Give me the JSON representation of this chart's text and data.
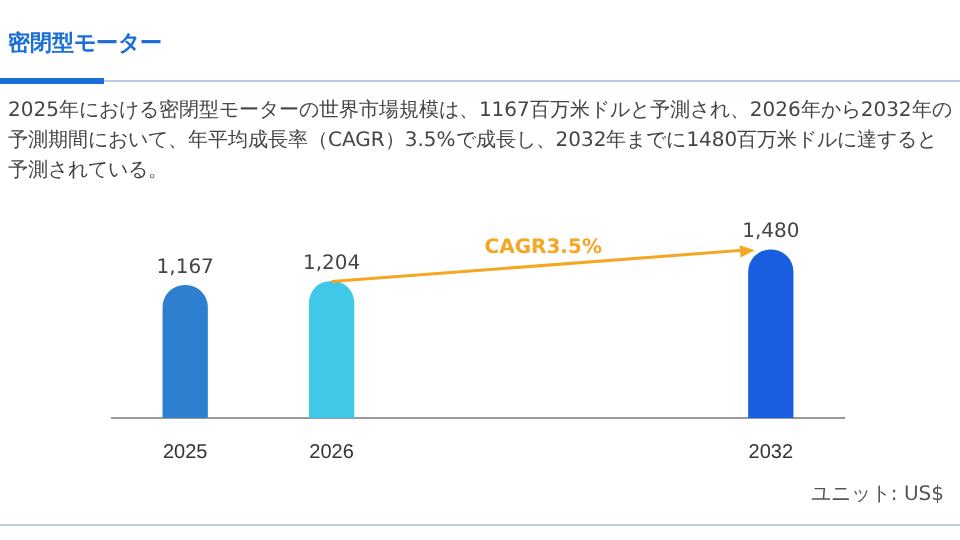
{
  "chart_data": {
    "type": "bar",
    "title": "密閉型モーター",
    "categories": [
      "2025",
      "2026",
      null,
      null,
      "2032"
    ],
    "values": [
      1167,
      1204,
      null,
      null,
      1480
    ],
    "colors": [
      "#2e7fd0",
      "#40c8e8",
      null,
      null,
      "#1a5ee0"
    ],
    "value_labels": [
      "1,167",
      "1,204",
      null,
      null,
      "1,480"
    ],
    "annotations": [
      "2025年における密閉型モーターの世界市場規模は、1167百万米ドルと予測され、2026年から2032年の予測期間において、年平均成長率（CAGR）3.5%で成長し、2032年までに1480百万米ドルに達すると予測されている。",
      "CAGR3.5%",
      "ユニット: US$"
    ]
  }
}
